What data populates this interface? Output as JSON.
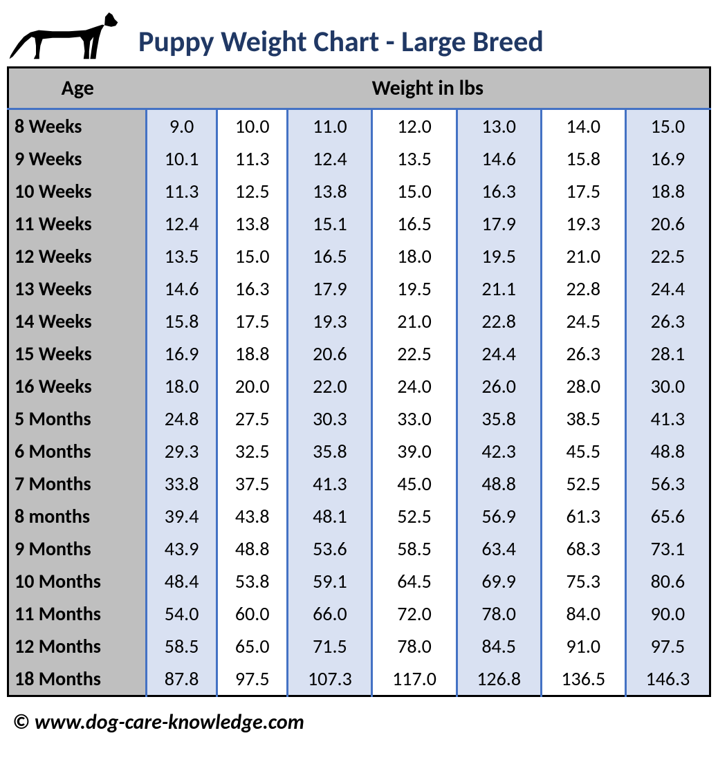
{
  "title": "Puppy Weight Chart - Large Breed",
  "columns": {
    "age_header": "Age",
    "weight_header": "Weight in lbs"
  },
  "weight_col_count": 7,
  "shaded_cols": [
    0,
    2,
    4,
    6
  ],
  "rows": [
    {
      "age": "8 Weeks",
      "w": [
        "9.0",
        "10.0",
        "11.0",
        "12.0",
        "13.0",
        "14.0",
        "15.0"
      ]
    },
    {
      "age": "9 Weeks",
      "w": [
        "10.1",
        "11.3",
        "12.4",
        "13.5",
        "14.6",
        "15.8",
        "16.9"
      ]
    },
    {
      "age": "10 Weeks",
      "w": [
        "11.3",
        "12.5",
        "13.8",
        "15.0",
        "16.3",
        "17.5",
        "18.8"
      ]
    },
    {
      "age": "11 Weeks",
      "w": [
        "12.4",
        "13.8",
        "15.1",
        "16.5",
        "17.9",
        "19.3",
        "20.6"
      ]
    },
    {
      "age": "12 Weeks",
      "w": [
        "13.5",
        "15.0",
        "16.5",
        "18.0",
        "19.5",
        "21.0",
        "22.5"
      ]
    },
    {
      "age": "13 Weeks",
      "w": [
        "14.6",
        "16.3",
        "17.9",
        "19.5",
        "21.1",
        "22.8",
        "24.4"
      ]
    },
    {
      "age": "14 Weeks",
      "w": [
        "15.8",
        "17.5",
        "19.3",
        "21.0",
        "22.8",
        "24.5",
        "26.3"
      ]
    },
    {
      "age": "15 Weeks",
      "w": [
        "16.9",
        "18.8",
        "20.6",
        "22.5",
        "24.4",
        "26.3",
        "28.1"
      ]
    },
    {
      "age": "16 Weeks",
      "w": [
        "18.0",
        "20.0",
        "22.0",
        "24.0",
        "26.0",
        "28.0",
        "30.0"
      ]
    },
    {
      "age": "5 Months",
      "w": [
        "24.8",
        "27.5",
        "30.3",
        "33.0",
        "35.8",
        "38.5",
        "41.3"
      ]
    },
    {
      "age": "6 Months",
      "w": [
        "29.3",
        "32.5",
        "35.8",
        "39.0",
        "42.3",
        "45.5",
        "48.8"
      ]
    },
    {
      "age": "7 Months",
      "w": [
        "33.8",
        "37.5",
        "41.3",
        "45.0",
        "48.8",
        "52.5",
        "56.3"
      ]
    },
    {
      "age": "8 months",
      "w": [
        "39.4",
        "43.8",
        "48.1",
        "52.5",
        "56.9",
        "61.3",
        "65.6"
      ]
    },
    {
      "age": "9 Months",
      "w": [
        "43.9",
        "48.8",
        "53.6",
        "58.5",
        "63.4",
        "68.3",
        "73.1"
      ]
    },
    {
      "age": "10 Months",
      "w": [
        "48.4",
        "53.8",
        "59.1",
        "64.5",
        "69.9",
        "75.3",
        "80.6"
      ]
    },
    {
      "age": "11 Months",
      "w": [
        "54.0",
        "60.0",
        "66.0",
        "72.0",
        "78.0",
        "84.0",
        "90.0"
      ]
    },
    {
      "age": "12 Months",
      "w": [
        "58.5",
        "65.0",
        "71.5",
        "78.0",
        "84.5",
        "91.0",
        "97.5"
      ]
    },
    {
      "age": "18 Months",
      "w": [
        "87.8",
        "97.5",
        "107.3",
        "117.0",
        "126.8",
        "136.5",
        "146.3"
      ]
    }
  ],
  "footer": "© www.dog-care-knowledge.com",
  "colors": {
    "title": "#203864",
    "header_bg": "#bfbfbf",
    "age_bg": "#bfbfbf",
    "shaded_bg": "#d9e1f2",
    "border_main": "#000000",
    "border_col": "#4472c4",
    "text": "#000000",
    "page_bg": "#ffffff"
  },
  "fonts": {
    "title_size": 42,
    "header_size": 30,
    "cell_size": 28,
    "footer_size": 30
  }
}
